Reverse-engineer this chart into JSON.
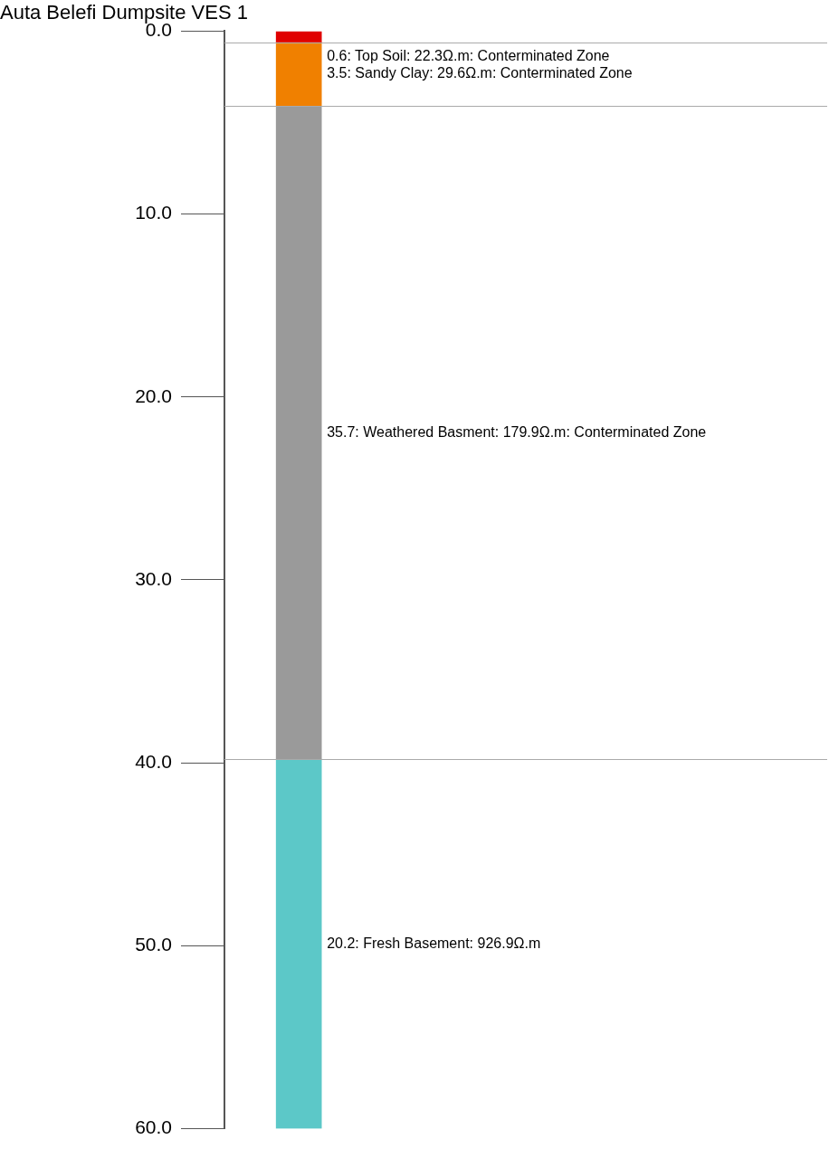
{
  "chart_data": {
    "type": "bar",
    "title": "Auta Belefi Dumpsite VES 1",
    "categories": [
      null
    ],
    "stacked": true,
    "legend": false,
    "tick_labels": "y",
    "series": [
      {
        "name": "0.6: Top Soil: 22.3Ω.m: Conterminated Zone",
        "color": "#e00000",
        "values": [
          0.6
        ]
      },
      {
        "name": "3.5: Sandy Clay: 29.6Ω.m: Conterminated Zone",
        "color": "#f08000",
        "values": [
          3.5
        ]
      },
      {
        "name": "35.7: Weathered Basment: 179.9Ω.m: Conterminated Zone",
        "color": "#9a9a9a",
        "values": [
          35.7
        ]
      },
      {
        "name": "20.2: Fresh Basement: 926.9Ω.m",
        "color": "#5cc8c8",
        "values": [
          20.2
        ]
      }
    ],
    "ylim": [
      60,
      0
    ],
    "yticks": [
      {
        "value": 0,
        "label": "0.0"
      },
      {
        "value": 10,
        "label": "10.0"
      },
      {
        "value": 20,
        "label": "20.0"
      },
      {
        "value": 30,
        "label": "30.0"
      },
      {
        "value": 40,
        "label": "40.0"
      },
      {
        "value": 50,
        "label": "50.0"
      },
      {
        "value": 60,
        "label": "60.0"
      }
    ],
    "ref_lines": [
      {
        "axis": "y",
        "value": 0.6,
        "color": "#aaaaaa"
      },
      {
        "axis": "y",
        "value": 4.1,
        "color": "#aaaaaa"
      },
      {
        "axis": "y",
        "value": 39.8,
        "color": "#aaaaaa"
      }
    ]
  }
}
